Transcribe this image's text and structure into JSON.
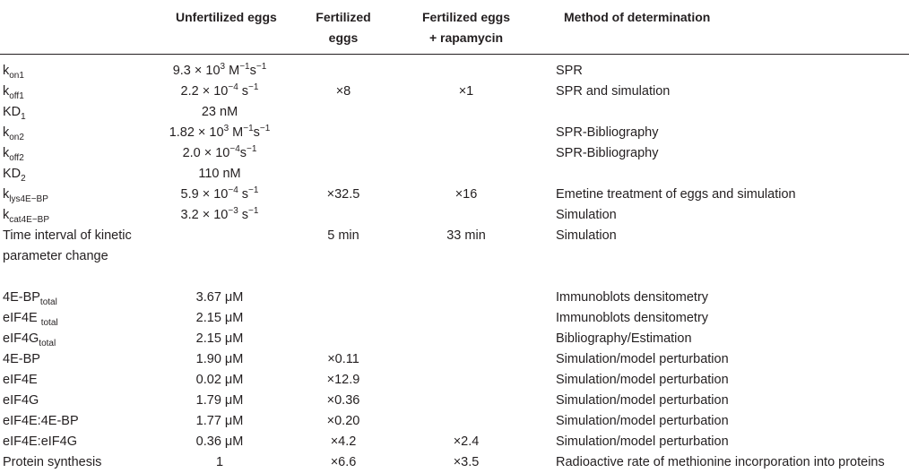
{
  "headers": {
    "col1": "Unfertilized eggs",
    "col2a": "Fertilized",
    "col2b": "eggs",
    "col3a": "Fertilized eggs",
    "col3b": "+ rapamycin",
    "col4": "Method of determination"
  },
  "rows": [
    {
      "p": "k",
      "ps": "on1",
      "u": "9.3 × 10",
      "u_sup": "3",
      "u_rest": " M",
      "u_sup2": "−1",
      "u_rest2": "s",
      "u_sup3": "−1",
      "f": "",
      "r": "",
      "m": "SPR"
    },
    {
      "p": "k",
      "ps": "off1",
      "u": "2.2 × 10",
      "u_sup": "−4",
      "u_rest": " s",
      "u_sup2": "−1",
      "u_rest2": "",
      "u_sup3": "",
      "f": "×8",
      "r": "×1",
      "m": "SPR and simulation"
    },
    {
      "p": "KD",
      "ps": "1",
      "u": "23 nM",
      "u_sup": "",
      "u_rest": "",
      "u_sup2": "",
      "u_rest2": "",
      "u_sup3": "",
      "f": "",
      "r": "",
      "m": ""
    },
    {
      "p": "k",
      "ps": "on2",
      "u": "1.82 × 10",
      "u_sup": "3",
      "u_rest": " M",
      "u_sup2": "−1",
      "u_rest2": "s",
      "u_sup3": "−1",
      "f": "",
      "r": "",
      "m": "SPR-Bibliography"
    },
    {
      "p": "k",
      "ps": "off2",
      "u": "2.0 × 10",
      "u_sup": "−4",
      "u_rest": "s",
      "u_sup2": "−1",
      "u_rest2": "",
      "u_sup3": "",
      "f": "",
      "r": "",
      "m": "SPR-Bibliography"
    },
    {
      "p": "KD",
      "ps": "2",
      "u": "110 nM",
      "u_sup": "",
      "u_rest": "",
      "u_sup2": "",
      "u_rest2": "",
      "u_sup3": "",
      "f": "",
      "r": "",
      "m": ""
    },
    {
      "p": "k",
      "ps": "lys4E−BP",
      "u": "5.9 × 10",
      "u_sup": "−4",
      "u_rest": " s",
      "u_sup2": "−1",
      "u_rest2": "",
      "u_sup3": "",
      "f": "×32.5",
      "r": "×16",
      "m": "Emetine treatment of eggs and simulation"
    },
    {
      "p": "k",
      "ps": "cat4E−BP",
      "u": "3.2 × 10",
      "u_sup": "−3",
      "u_rest": " s",
      "u_sup2": "−1",
      "u_rest2": "",
      "u_sup3": "",
      "f": "",
      "r": "",
      "m": "Simulation"
    }
  ],
  "time_row": {
    "p": "Time interval of kinetic parameter change",
    "f": "5 min",
    "r": "33 min",
    "m": "Simulation"
  },
  "rows2": [
    {
      "p": "4E-BP",
      "ps": "total",
      "u": "3.67 μM",
      "f": "",
      "r": "",
      "m": "Immunoblots densitometry"
    },
    {
      "p": "eIF4E ",
      "ps": "total",
      "u": "2.15 μM",
      "f": "",
      "r": "",
      "m": "Immunoblots densitometry"
    },
    {
      "p": "eIF4G",
      "ps": "total",
      "u": "2.15 μM",
      "f": "",
      "r": "",
      "m": "Bibliography/Estimation"
    },
    {
      "p": "4E-BP",
      "ps": "",
      "u": "1.90 μM",
      "f": "×0.11",
      "r": "",
      "m": "Simulation/model perturbation"
    },
    {
      "p": "eIF4E",
      "ps": "",
      "u": "0.02 μM",
      "f": "×12.9",
      "r": "",
      "m": "Simulation/model perturbation"
    },
    {
      "p": "eIF4G",
      "ps": "",
      "u": "1.79 μM",
      "f": "×0.36",
      "r": "",
      "m": "Simulation/model perturbation"
    },
    {
      "p": "eIF4E:4E-BP",
      "ps": "",
      "u": "1.77 μM",
      "f": "×0.20",
      "r": "",
      "m": "Simulation/model perturbation"
    },
    {
      "p": "eIF4E:eIF4G",
      "ps": "",
      "u": "0.36 μM",
      "f": "×4.2",
      "r": "×2.4",
      "m": "Simulation/model perturbation"
    },
    {
      "p": "Protein synthesis",
      "ps": "",
      "u": "1",
      "f": "×6.6",
      "r": "×3.5",
      "m": "Radioactive rate of methionine incorporation into proteins"
    }
  ]
}
